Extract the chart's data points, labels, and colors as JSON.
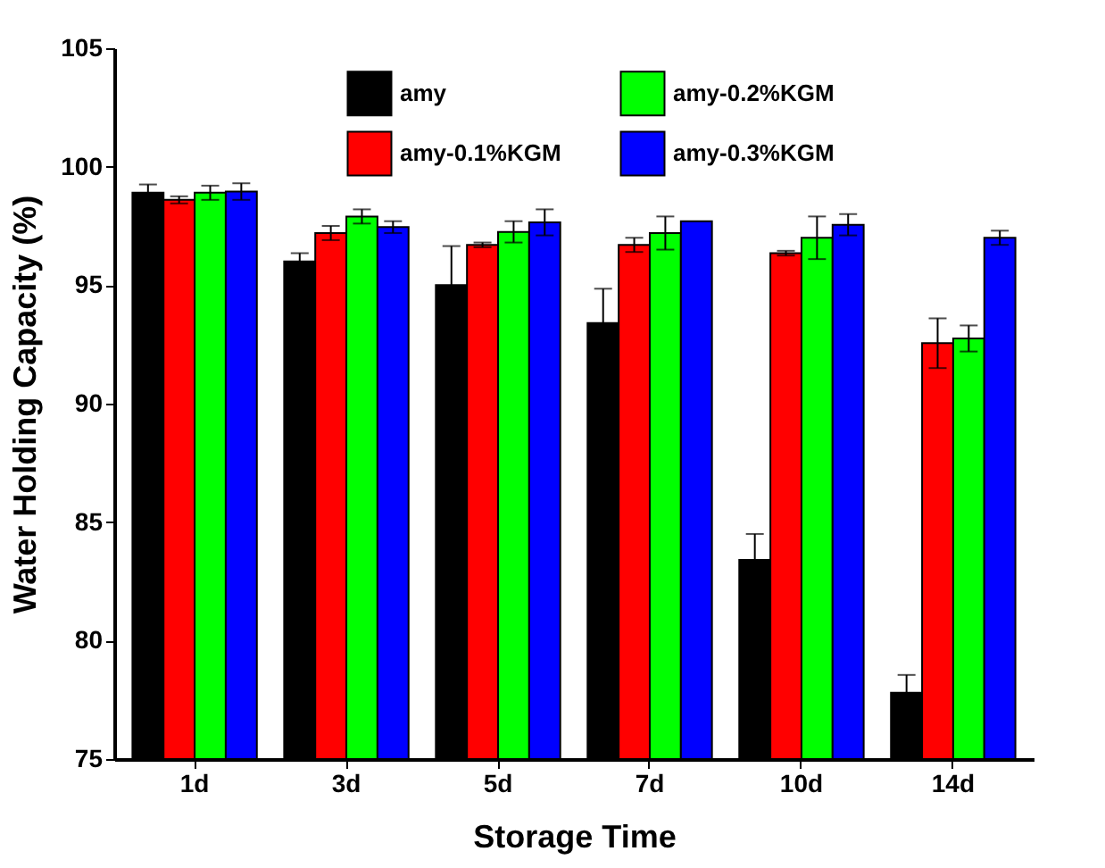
{
  "chart_data": {
    "type": "bar",
    "xlabel": "Storage Time",
    "ylabel": "Water Holding Capacity (%)",
    "categories": [
      "1d",
      "3d",
      "5d",
      "7d",
      "10d",
      "14d"
    ],
    "series": [
      {
        "name": "amy",
        "color": "#000000",
        "values": [
          98.9,
          96.0,
          95.0,
          93.4,
          83.4,
          77.8
        ],
        "errors": [
          0.35,
          0.35,
          1.65,
          1.45,
          1.1,
          0.75
        ]
      },
      {
        "name": "amy-0.1%KGM",
        "color": "#ff0000",
        "values": [
          98.6,
          97.2,
          96.7,
          96.7,
          96.35,
          92.55
        ],
        "errors": [
          0.15,
          0.3,
          0.1,
          0.3,
          0.1,
          1.05
        ]
      },
      {
        "name": "amy-0.2%KGM",
        "color": "#00ff00",
        "values": [
          98.9,
          97.9,
          97.25,
          97.2,
          97.0,
          92.75
        ],
        "errors": [
          0.3,
          0.3,
          0.45,
          0.7,
          0.9,
          0.55
        ]
      },
      {
        "name": "amy-0.3%KGM",
        "color": "#0000ff",
        "values": [
          98.95,
          97.45,
          97.65,
          97.7,
          97.55,
          97.0
        ],
        "errors": [
          0.35,
          0.25,
          0.55,
          null,
          0.45,
          0.3
        ]
      }
    ],
    "ylim": [
      75,
      105
    ],
    "yticks": [
      75,
      80,
      85,
      90,
      95,
      100,
      105
    ],
    "grid": false,
    "legend": "top"
  }
}
